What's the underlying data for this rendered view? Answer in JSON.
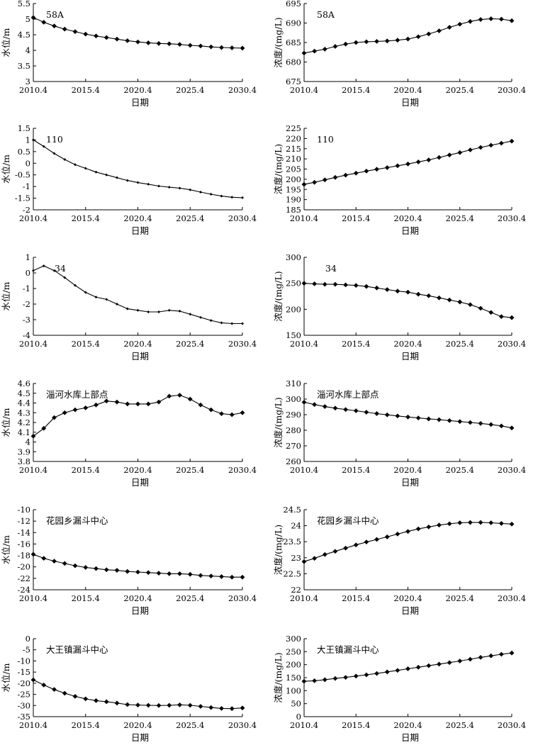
{
  "chart_data": [
    {
      "type": "line",
      "title": "58A",
      "xlabel": "日期",
      "ylabel": "水位/m",
      "ylim": [
        3,
        5.5
      ],
      "yticks": [
        "3",
        "3.5",
        "4",
        "4.5",
        "5",
        "5.5"
      ],
      "xticks": [
        "2010.4",
        "2015.4",
        "2020.4",
        "2025.4",
        "2030.4"
      ],
      "x": [
        2010.4,
        2011.4,
        2012.4,
        2013.4,
        2014.4,
        2015.4,
        2016.4,
        2017.4,
        2018.4,
        2019.4,
        2020.4,
        2021.4,
        2022.4,
        2023.4,
        2024.4,
        2025.4,
        2026.4,
        2027.4,
        2028.4,
        2029.4,
        2030.4
      ],
      "values": [
        5.05,
        4.9,
        4.78,
        4.68,
        4.6,
        4.52,
        4.46,
        4.41,
        4.36,
        4.31,
        4.27,
        4.24,
        4.22,
        4.21,
        4.19,
        4.16,
        4.14,
        4.11,
        4.09,
        4.08,
        4.07
      ]
    },
    {
      "type": "line",
      "title": "58A",
      "xlabel": "日期",
      "ylabel": "浓度/(mg/L)",
      "ylim": [
        675,
        695
      ],
      "yticks": [
        "675",
        "680",
        "685",
        "690",
        "695"
      ],
      "xticks": [
        "2010.4",
        "2015.4",
        "2020.4",
        "2025.4",
        "2030.4"
      ],
      "x": [
        2010.4,
        2011.4,
        2012.4,
        2013.4,
        2014.4,
        2015.4,
        2016.4,
        2017.4,
        2018.4,
        2019.4,
        2020.4,
        2021.4,
        2022.4,
        2023.4,
        2024.4,
        2025.4,
        2026.4,
        2027.4,
        2028.4,
        2029.4,
        2030.4
      ],
      "values": [
        682.3,
        682.8,
        683.3,
        684.0,
        684.6,
        685.0,
        685.2,
        685.3,
        685.4,
        685.6,
        685.9,
        686.5,
        687.2,
        688.0,
        688.9,
        689.7,
        690.4,
        690.9,
        691.1,
        691.0,
        690.6
      ]
    },
    {
      "type": "line",
      "title": "110",
      "xlabel": "日期",
      "ylabel": "水位/m",
      "ylim": [
        -2,
        1.5
      ],
      "yticks": [
        "-2",
        "-1.5",
        "-1",
        "-0.5",
        "0",
        "0.5",
        "1",
        "1.5"
      ],
      "xticks": [
        "2010.4",
        "2015.4",
        "2020.4",
        "2025.4",
        "2030.4"
      ],
      "x": [
        2010.4,
        2011.4,
        2012.4,
        2013.4,
        2014.4,
        2015.4,
        2016.4,
        2017.4,
        2018.4,
        2019.4,
        2020.4,
        2021.4,
        2022.4,
        2023.4,
        2024.4,
        2025.4,
        2026.4,
        2027.4,
        2028.4,
        2029.4,
        2030.4
      ],
      "values": [
        1.0,
        0.72,
        0.42,
        0.16,
        -0.06,
        -0.22,
        -0.38,
        -0.5,
        -0.62,
        -0.74,
        -0.83,
        -0.9,
        -0.98,
        -1.03,
        -1.07,
        -1.14,
        -1.24,
        -1.33,
        -1.41,
        -1.46,
        -1.48
      ]
    },
    {
      "type": "line",
      "title": "110",
      "xlabel": "日期",
      "ylabel": "浓度/(mg/L)",
      "ylim": [
        185,
        225
      ],
      "yticks": [
        "185",
        "190",
        "195",
        "200",
        "205",
        "210",
        "215",
        "220",
        "225"
      ],
      "xticks": [
        "2010.4",
        "2015.4",
        "2020.4",
        "2025.4",
        "2030.4"
      ],
      "x": [
        2010.4,
        2011.4,
        2012.4,
        2013.4,
        2014.4,
        2015.4,
        2016.4,
        2017.4,
        2018.4,
        2019.4,
        2020.4,
        2021.4,
        2022.4,
        2023.4,
        2024.4,
        2025.4,
        2026.4,
        2027.4,
        2028.4,
        2029.4,
        2030.4
      ],
      "values": [
        197.5,
        198.5,
        199.7,
        200.9,
        202.0,
        203.0,
        204.0,
        204.9,
        205.7,
        206.6,
        207.5,
        208.5,
        209.5,
        210.7,
        211.9,
        213.1,
        214.4,
        215.6,
        216.7,
        217.7,
        218.7
      ]
    },
    {
      "type": "line",
      "title": "34",
      "xlabel": "日期",
      "ylabel": "水位/m",
      "ylim": [
        -4,
        1
      ],
      "yticks": [
        "-4",
        "-3",
        "-2",
        "-1",
        "0",
        "1"
      ],
      "xticks": [
        "2010.4",
        "2015.4",
        "2020.4",
        "2025.4",
        "2030.4"
      ],
      "x": [
        2010.4,
        2011.4,
        2012.4,
        2013.4,
        2014.4,
        2015.4,
        2016.4,
        2017.4,
        2018.4,
        2019.4,
        2020.4,
        2021.4,
        2022.4,
        2023.4,
        2024.4,
        2025.4,
        2026.4,
        2027.4,
        2028.4,
        2029.4,
        2030.4
      ],
      "values": [
        0.15,
        0.45,
        0.15,
        -0.3,
        -0.8,
        -1.25,
        -1.55,
        -1.7,
        -2.0,
        -2.3,
        -2.4,
        -2.5,
        -2.5,
        -2.4,
        -2.45,
        -2.65,
        -2.85,
        -3.05,
        -3.2,
        -3.25,
        -3.25
      ]
    },
    {
      "type": "line",
      "title": "34",
      "xlabel": "日期",
      "ylabel": "浓度/(mg/L)",
      "ylim": [
        150,
        300
      ],
      "yticks": [
        "150",
        "200",
        "250",
        "300"
      ],
      "xticks": [
        "2010.4",
        "2015.4",
        "2020.4",
        "2025.4",
        "2030.4"
      ],
      "x": [
        2010.4,
        2011.4,
        2012.4,
        2013.4,
        2014.4,
        2015.4,
        2016.4,
        2017.4,
        2018.4,
        2019.4,
        2020.4,
        2021.4,
        2022.4,
        2023.4,
        2024.4,
        2025.4,
        2026.4,
        2027.4,
        2028.4,
        2029.4,
        2030.4
      ],
      "values": [
        250,
        249,
        248,
        248,
        247,
        246,
        244,
        241,
        238,
        235,
        233,
        229,
        226,
        222,
        218,
        214,
        209,
        202,
        194,
        186,
        184
      ]
    },
    {
      "type": "line",
      "title": "淄河水库上部点",
      "xlabel": "日期",
      "ylabel": "水位/m",
      "ylim": [
        3.8,
        4.6
      ],
      "yticks": [
        "3.8",
        "3.9",
        "4",
        "4.1",
        "4.2",
        "4.3",
        "4.4",
        "4.5",
        "4.6"
      ],
      "xticks": [
        "2010.4",
        "2015.4",
        "2020.4",
        "2025.4",
        "2030.4"
      ],
      "x": [
        2010.4,
        2011.4,
        2012.4,
        2013.4,
        2014.4,
        2015.4,
        2016.4,
        2017.4,
        2018.4,
        2019.4,
        2020.4,
        2021.4,
        2022.4,
        2023.4,
        2024.4,
        2025.4,
        2026.4,
        2027.4,
        2028.4,
        2029.4,
        2030.4
      ],
      "values": [
        4.06,
        4.14,
        4.25,
        4.3,
        4.33,
        4.35,
        4.38,
        4.42,
        4.41,
        4.39,
        4.39,
        4.39,
        4.41,
        4.47,
        4.48,
        4.44,
        4.38,
        4.33,
        4.29,
        4.28,
        4.3
      ]
    },
    {
      "type": "line",
      "title": "淄河水库上部点",
      "xlabel": "日期",
      "ylabel": "浓度/(mg/L)",
      "ylim": [
        260,
        310
      ],
      "yticks": [
        "260",
        "270",
        "280",
        "290",
        "300",
        "310"
      ],
      "xticks": [
        "2010.4",
        "2015.4",
        "2020.4",
        "2025.4",
        "2030.4"
      ],
      "x": [
        2010.4,
        2011.4,
        2012.4,
        2013.4,
        2014.4,
        2015.4,
        2016.4,
        2017.4,
        2018.4,
        2019.4,
        2020.4,
        2021.4,
        2022.4,
        2023.4,
        2024.4,
        2025.4,
        2026.4,
        2027.4,
        2028.4,
        2029.4,
        2030.4
      ],
      "values": [
        298,
        296.5,
        295.2,
        294.2,
        293.3,
        292.5,
        291.6,
        290.7,
        289.9,
        289.2,
        288.5,
        287.9,
        287.3,
        286.8,
        286.2,
        285.6,
        285.0,
        284.4,
        283.7,
        282.8,
        281.5
      ]
    },
    {
      "type": "line",
      "title": "花园乡漏斗中心",
      "xlabel": "日期",
      "ylabel": "水位/m",
      "ylim": [
        -24,
        -10
      ],
      "yticks": [
        "-24",
        "-22",
        "-20",
        "-18",
        "-16",
        "-14",
        "-12",
        "-10"
      ],
      "xticks": [
        "2010.4",
        "2015.4",
        "2020.4",
        "2025.4",
        "2030.4"
      ],
      "x": [
        2010.4,
        2011.4,
        2012.4,
        2013.4,
        2014.4,
        2015.4,
        2016.4,
        2017.4,
        2018.4,
        2019.4,
        2020.4,
        2021.4,
        2022.4,
        2023.4,
        2024.4,
        2025.4,
        2026.4,
        2027.4,
        2028.4,
        2029.4,
        2030.4
      ],
      "values": [
        -17.8,
        -18.5,
        -19.0,
        -19.4,
        -19.8,
        -20.1,
        -20.3,
        -20.5,
        -20.6,
        -20.8,
        -20.9,
        -21.0,
        -21.1,
        -21.2,
        -21.2,
        -21.3,
        -21.5,
        -21.6,
        -21.7,
        -21.8,
        -21.8
      ]
    },
    {
      "type": "line",
      "title": "花园乡漏斗中心",
      "xlabel": "日期",
      "ylabel": "浓度/(mg/L)",
      "ylim": [
        22,
        24.5
      ],
      "yticks": [
        "22",
        "22.5",
        "23",
        "23.5",
        "24",
        "24.5"
      ],
      "xticks": [
        "2010.4",
        "2015.4",
        "2020.4",
        "2025.4",
        "2030.4"
      ],
      "x": [
        2010.4,
        2011.4,
        2012.4,
        2013.4,
        2014.4,
        2015.4,
        2016.4,
        2017.4,
        2018.4,
        2019.4,
        2020.4,
        2021.4,
        2022.4,
        2023.4,
        2024.4,
        2025.4,
        2026.4,
        2027.4,
        2028.4,
        2029.4,
        2030.4
      ],
      "values": [
        22.88,
        22.98,
        23.1,
        23.2,
        23.3,
        23.4,
        23.49,
        23.57,
        23.65,
        23.74,
        23.82,
        23.9,
        23.96,
        24.02,
        24.06,
        24.09,
        24.1,
        24.1,
        24.09,
        24.07,
        24.05
      ]
    },
    {
      "type": "line",
      "title": "大王镇漏斗中心",
      "xlabel": "日期",
      "ylabel": "水位/m",
      "ylim": [
        -35,
        0
      ],
      "yticks": [
        "-35",
        "-30",
        "-25",
        "-20",
        "-15",
        "-10",
        "-5",
        "0"
      ],
      "xticks": [
        "2010.4",
        "2015.4",
        "2020.4",
        "2025.4",
        "2030.4"
      ],
      "x": [
        2010.4,
        2011.4,
        2012.4,
        2013.4,
        2014.4,
        2015.4,
        2016.4,
        2017.4,
        2018.4,
        2019.4,
        2020.4,
        2021.4,
        2022.4,
        2023.4,
        2024.4,
        2025.4,
        2026.4,
        2027.4,
        2028.4,
        2029.4,
        2030.4
      ],
      "values": [
        -18.5,
        -20.8,
        -22.8,
        -24.5,
        -25.9,
        -27.0,
        -27.8,
        -28.3,
        -28.9,
        -29.6,
        -29.8,
        -29.9,
        -30.0,
        -29.9,
        -29.7,
        -29.9,
        -30.4,
        -30.9,
        -31.3,
        -31.4,
        -31.1
      ]
    },
    {
      "type": "line",
      "title": "大王镇漏斗中心",
      "xlabel": "日期",
      "ylabel": "浓度/(mg/L)",
      "ylim": [
        0,
        300
      ],
      "yticks": [
        "0",
        "50",
        "100",
        "150",
        "200",
        "250",
        "300"
      ],
      "xticks": [
        "2010.4",
        "2015.4",
        "2020.4",
        "2025.4",
        "2030.4"
      ],
      "x": [
        2010.4,
        2011.4,
        2012.4,
        2013.4,
        2014.4,
        2015.4,
        2016.4,
        2017.4,
        2018.4,
        2019.4,
        2020.4,
        2021.4,
        2022.4,
        2023.4,
        2024.4,
        2025.4,
        2026.4,
        2027.4,
        2028.4,
        2029.4,
        2030.4
      ],
      "values": [
        136,
        138,
        142,
        147,
        151,
        156,
        161,
        166,
        172,
        178,
        184,
        190,
        196,
        202,
        208,
        214,
        221,
        228,
        234,
        240,
        245
      ]
    }
  ]
}
